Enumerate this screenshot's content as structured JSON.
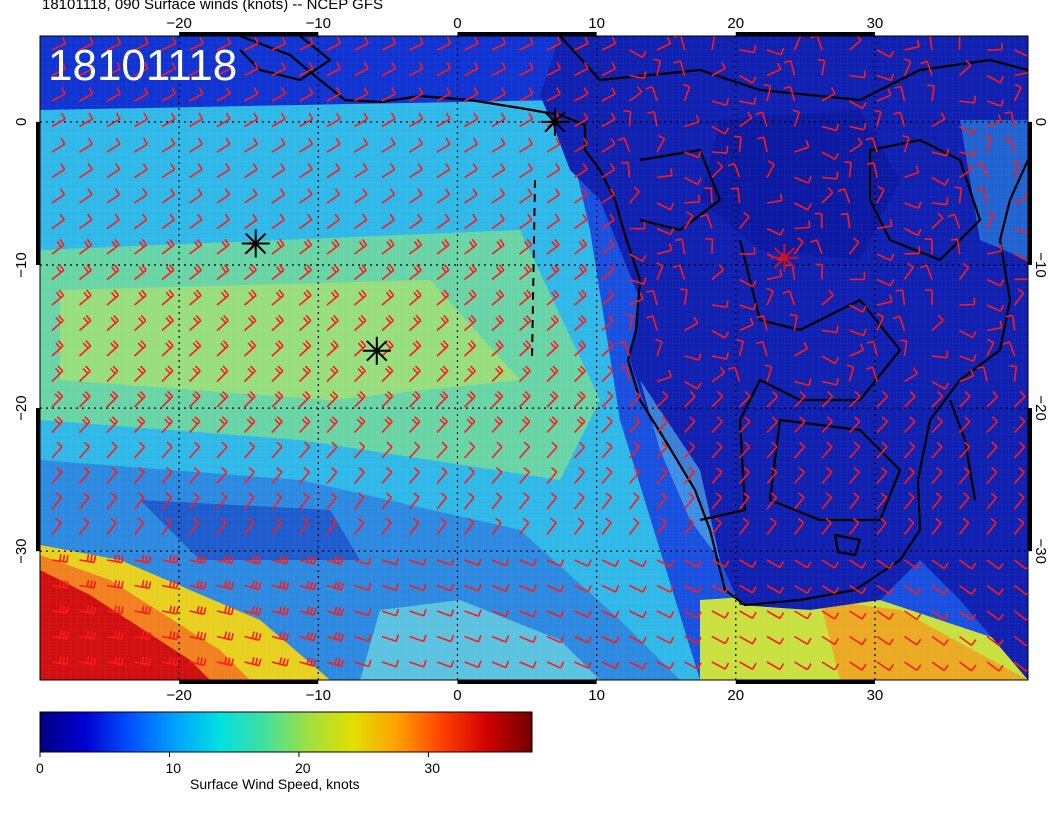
{
  "header": {
    "title": "18101118, 090 Surface winds (knots) -- NCEP GFS"
  },
  "map": {
    "stamp": "18101118",
    "lon_ticks": [
      "−20",
      "−10",
      "0",
      "10",
      "20",
      "30"
    ],
    "lon_values": [
      -20,
      -10,
      0,
      10,
      20,
      30
    ],
    "lat_ticks": [
      "0",
      "−10",
      "−20",
      "−30"
    ],
    "lat_values": [
      0,
      -10,
      -20,
      -30
    ],
    "lon_range": [
      -30,
      41
    ],
    "lat_range": [
      -39,
      6
    ],
    "barb_color": "#ff1a1a",
    "coast_color": "#000000",
    "markers": [
      {
        "lon": -14.5,
        "lat": -8.5,
        "type": "star"
      },
      {
        "lon": -5.8,
        "lat": -16.0,
        "type": "star"
      },
      {
        "lon": 7.0,
        "lat": 0.0,
        "type": "star"
      },
      {
        "lon": 23.5,
        "lat": -9.5,
        "type": "star-red"
      }
    ]
  },
  "colorbar": {
    "label": "Surface Wind Speed, knots",
    "ticks": [
      "0",
      "10",
      "20",
      "30"
    ],
    "tick_values": [
      0,
      10,
      20,
      30
    ],
    "max": 38,
    "colors": [
      "#000080",
      "#0000d0",
      "#0050ff",
      "#00a0ff",
      "#00e0e0",
      "#40e0a0",
      "#a0e040",
      "#e0e000",
      "#ffa000",
      "#ff4000",
      "#d00000",
      "#700000"
    ]
  }
}
